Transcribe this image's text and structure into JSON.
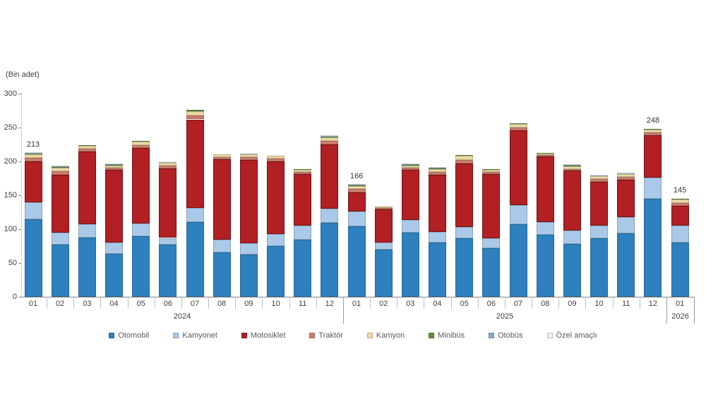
{
  "chart_data": {
    "type": "bar",
    "stacked": true,
    "title": "",
    "unit_label": "(Bin adet)",
    "ylim": [
      0,
      300
    ],
    "y_ticks": [
      0,
      50,
      100,
      150,
      200,
      250,
      300
    ],
    "grid": false,
    "legend_position": "bottom",
    "categories": [
      "01",
      "02",
      "03",
      "04",
      "05",
      "06",
      "07",
      "08",
      "09",
      "10",
      "11",
      "12",
      "01",
      "02",
      "03",
      "04",
      "05",
      "06",
      "07",
      "08",
      "09",
      "10",
      "11",
      "12",
      "01"
    ],
    "year_spans": [
      {
        "label": "2024",
        "start": 0,
        "count": 12
      },
      {
        "label": "2025",
        "start": 12,
        "count": 12
      },
      {
        "label": "2026",
        "start": 24,
        "count": 1
      }
    ],
    "series": [
      {
        "name": "Otomobil",
        "color": "#2e80be",
        "values": [
          115,
          77,
          88,
          64,
          90,
          77,
          110,
          66,
          62,
          75,
          84,
          109,
          104,
          70,
          95,
          80,
          86,
          72,
          107,
          92,
          78,
          86,
          94,
          145,
          80
        ]
      },
      {
        "name": "Kamyonet",
        "color": "#aac9e8",
        "values": [
          25,
          18,
          19,
          16,
          18,
          10,
          21,
          18,
          17,
          18,
          21,
          21,
          22,
          10,
          19,
          16,
          17,
          14,
          28,
          18,
          20,
          19,
          24,
          31,
          25
        ]
      },
      {
        "name": "Motosiklet",
        "color": "#b22024",
        "values": [
          60,
          85,
          108,
          108,
          112,
          103,
          131,
          119,
          123,
          107,
          76,
          95,
          28,
          49,
          74,
          84,
          94,
          95,
          111,
          97,
          88,
          65,
          55,
          63,
          29
        ]
      },
      {
        "name": "Traktör",
        "color": "#cd7f6f",
        "values": [
          5,
          5,
          4,
          3,
          4,
          4,
          6,
          3,
          4,
          4,
          3,
          5,
          5,
          2,
          3,
          4,
          5,
          3,
          4,
          2,
          3,
          4,
          4,
          4,
          5
        ]
      },
      {
        "name": "Kamyon",
        "color": "#ecd9a5",
        "values": [
          5,
          6,
          4,
          3,
          5,
          4,
          6,
          4,
          4,
          4,
          4,
          5,
          5,
          2,
          3,
          5,
          6,
          4,
          5,
          3,
          4,
          4,
          4,
          4,
          5
        ]
      },
      {
        "name": "Minibüs",
        "color": "#5e8f43",
        "values": [
          2,
          1,
          1,
          1,
          1,
          1,
          2,
          1,
          1,
          1,
          1,
          2,
          1,
          1,
          1,
          1,
          1,
          1,
          1,
          1,
          1,
          1,
          1,
          1,
          1
        ]
      },
      {
        "name": "Otobüs",
        "color": "#8caac6",
        "values": [
          1,
          1,
          1,
          1,
          1,
          0.5,
          1,
          0.5,
          1,
          0.5,
          0.5,
          1,
          1,
          0.5,
          1,
          1,
          1,
          0.5,
          1,
          0.5,
          1,
          0.5,
          0.5,
          0.5,
          0.5
        ]
      },
      {
        "name": "Özel amaçlı",
        "color": "#f2efe8",
        "values": [
          0.4,
          0.4,
          0.4,
          0.4,
          0.4,
          0.4,
          0.4,
          0.4,
          0.4,
          0.4,
          0.4,
          0.4,
          0.4,
          0.4,
          0.4,
          0.4,
          0.4,
          0.4,
          0.4,
          0.4,
          0.4,
          0.4,
          0.4,
          0.4,
          0.4
        ]
      }
    ],
    "bar_labels": [
      {
        "index": 0,
        "text": "213"
      },
      {
        "index": 12,
        "text": "166"
      },
      {
        "index": 23,
        "text": "248"
      },
      {
        "index": 24,
        "text": "145"
      }
    ]
  }
}
